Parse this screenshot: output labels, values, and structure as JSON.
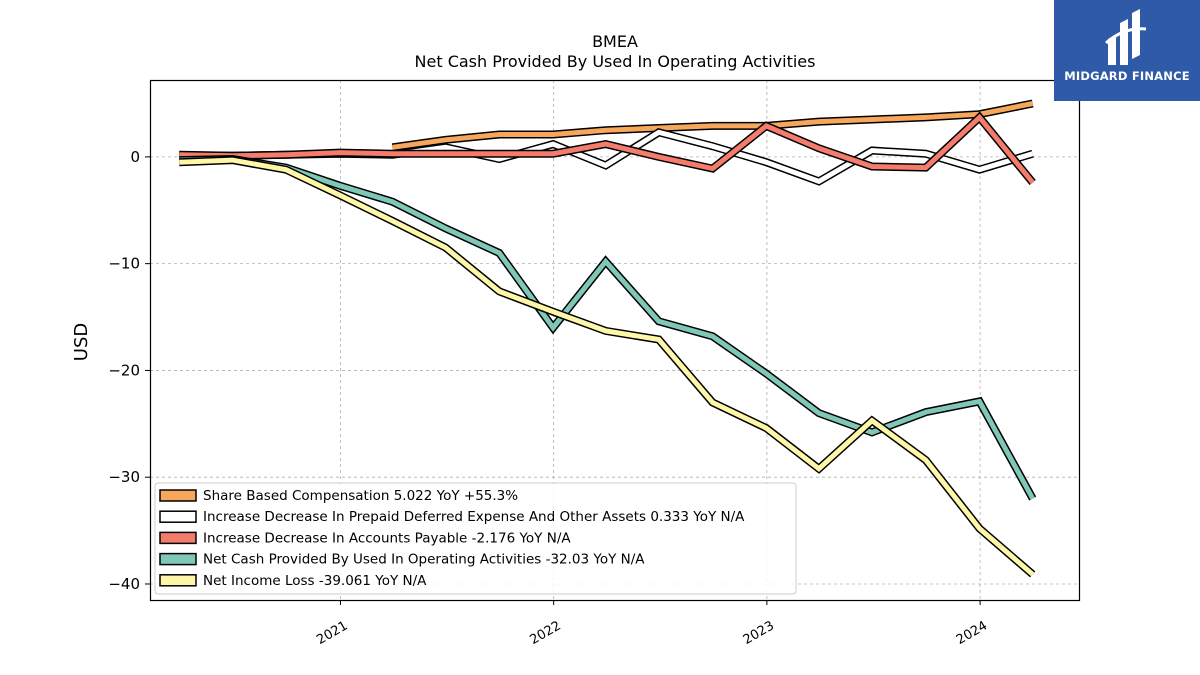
{
  "logo": {
    "text": "MIDGARD FINANCE"
  },
  "chart_data": {
    "type": "line",
    "title": "BMEA",
    "subtitle": "Net Cash Provided By Used In Operating Activities",
    "ylabel": "USD",
    "xlabel": "",
    "ylim": [
      -41.5,
      7.2
    ],
    "xlim": [
      "2020-02-10",
      "2024-06-20"
    ],
    "yticks": [
      0,
      -10,
      -20,
      -30,
      -40
    ],
    "ytick_labels": [
      "0",
      "−10",
      "−20",
      "−30",
      "−40"
    ],
    "xticks": [
      "2021-01-01",
      "2022-01-01",
      "2023-01-01",
      "2024-01-01"
    ],
    "xtick_labels": [
      "2021",
      "2022",
      "2023",
      "2024"
    ],
    "grid": true,
    "legend_position": "lower-left",
    "series": [
      {
        "name": "Share Based Compensation",
        "legend": "Share Based Compensation  5.022 YoY +55.3%",
        "color": "#f6a75c",
        "x": [
          "2021-03-31",
          "2021-06-30",
          "2021-09-30",
          "2021-12-31",
          "2022-03-31",
          "2022-06-30",
          "2022-09-30",
          "2022-12-31",
          "2023-03-31",
          "2023-06-30",
          "2023-09-30",
          "2023-12-31",
          "2024-03-31"
        ],
        "y": [
          0.9,
          1.6,
          2.1,
          2.1,
          2.5,
          2.7,
          2.9,
          2.9,
          3.3,
          3.5,
          3.7,
          4.0,
          5.0
        ]
      },
      {
        "name": "Increase Decrease In Prepaid Deferred Expense And Other Assets",
        "legend": "Increase Decrease In Prepaid Deferred Expense And Other Assets  0.333 YoY N/A",
        "color": "#ffffff",
        "x": [
          "2020-03-31",
          "2020-06-30",
          "2020-09-30",
          "2020-12-31",
          "2021-03-31",
          "2021-06-30",
          "2021-09-30",
          "2021-12-31",
          "2022-03-31",
          "2022-06-30",
          "2022-09-30",
          "2022-12-31",
          "2023-03-31",
          "2023-06-30",
          "2023-09-30",
          "2023-12-31",
          "2024-03-31"
        ],
        "y": [
          0.1,
          0.1,
          0.2,
          0.3,
          0.2,
          0.9,
          -0.2,
          1.2,
          -0.8,
          2.3,
          1.0,
          -0.5,
          -2.3,
          0.6,
          0.3,
          -1.2,
          0.3
        ]
      },
      {
        "name": "Increase Decrease In Accounts Payable",
        "legend": "Increase Decrease In Accounts Payable  -2.176 YoY N/A",
        "color": "#f47c6c",
        "x": [
          "2020-03-31",
          "2020-06-30",
          "2020-09-30",
          "2020-12-31",
          "2021-03-31",
          "2021-06-30",
          "2021-09-30",
          "2021-12-31",
          "2022-03-31",
          "2022-06-30",
          "2022-09-30",
          "2022-12-31",
          "2023-03-31",
          "2023-06-30",
          "2023-09-30",
          "2023-12-31",
          "2024-03-31"
        ],
        "y": [
          0.2,
          0.1,
          0.2,
          0.4,
          0.3,
          0.3,
          0.3,
          0.3,
          1.2,
          0.0,
          -1.1,
          2.9,
          0.8,
          -0.9,
          -1.0,
          3.7,
          -2.4
        ]
      },
      {
        "name": "Net Cash Provided By Used In Operating Activities",
        "legend": "Net Cash Provided By Used In Operating Activities  -32.03 YoY N/A",
        "color": "#7fc8b8",
        "x": [
          "2020-03-31",
          "2020-06-30",
          "2020-09-30",
          "2020-12-31",
          "2021-03-31",
          "2021-06-30",
          "2021-09-30",
          "2021-12-31",
          "2022-03-31",
          "2022-06-30",
          "2022-09-30",
          "2022-12-31",
          "2023-03-31",
          "2023-06-30",
          "2023-09-30",
          "2023-12-31",
          "2024-03-31"
        ],
        "y": [
          -0.3,
          -0.2,
          -1.0,
          -2.7,
          -4.2,
          -6.7,
          -9.0,
          -16.0,
          -9.8,
          -15.4,
          -16.8,
          -20.3,
          -24.0,
          -25.8,
          -23.9,
          -22.9,
          -32.0
        ]
      },
      {
        "name": "Net Income Loss",
        "legend": "Net Income Loss  -39.061 YoY N/A",
        "color": "#fff7a8",
        "x": [
          "2020-03-31",
          "2020-06-30",
          "2020-09-30",
          "2020-12-31",
          "2021-03-31",
          "2021-06-30",
          "2021-09-30",
          "2021-12-31",
          "2022-03-31",
          "2022-06-30",
          "2022-09-30",
          "2022-12-31",
          "2023-03-31",
          "2023-06-30",
          "2023-09-30",
          "2023-12-31",
          "2024-03-31"
        ],
        "y": [
          -0.5,
          -0.3,
          -1.2,
          -3.6,
          -6.0,
          -8.5,
          -12.6,
          -14.5,
          -16.3,
          -17.1,
          -23.0,
          -25.4,
          -29.2,
          -24.7,
          -28.4,
          -34.8,
          -39.1
        ]
      }
    ]
  }
}
